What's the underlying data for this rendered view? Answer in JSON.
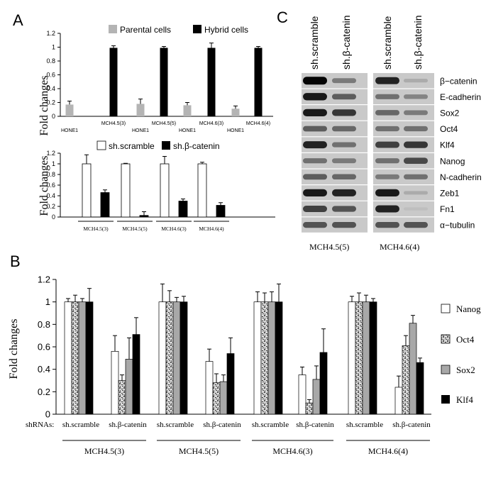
{
  "panels": {
    "A": "A",
    "B": "B",
    "C": "C"
  },
  "chart_data": [
    {
      "id": "A-top",
      "type": "bar",
      "ylabel": "Fold changes",
      "ylim": [
        0,
        1.2
      ],
      "yticks": [
        "0",
        "0.2",
        "0.4",
        "0.6",
        "0.8",
        "1",
        "1.2"
      ],
      "categories": [
        "HONE1",
        "MCH4.5(3)",
        "HONE1",
        "MCH4.5(5)",
        "HONE1",
        "MCH4.6(3)",
        "HONE1",
        "MCH4.6(4)"
      ],
      "series": [
        {
          "name": "Parental cells",
          "color": "#b4b4b4",
          "values": [
            0.17,
            null,
            0.18,
            null,
            0.16,
            null,
            0.11,
            null
          ],
          "errors": [
            0.05,
            null,
            0.07,
            null,
            0.04,
            null,
            0.04,
            null
          ]
        },
        {
          "name": "Hybrid cells",
          "color": "#000000",
          "values": [
            null,
            0.99,
            null,
            0.99,
            null,
            0.99,
            null,
            0.99
          ],
          "errors": [
            null,
            0.03,
            null,
            0.02,
            null,
            0.07,
            null,
            0.02
          ]
        }
      ],
      "legend": "top"
    },
    {
      "id": "A-bottom",
      "type": "bar",
      "ylabel": "Fold changes",
      "ylim": [
        0,
        1.2
      ],
      "yticks": [
        "0",
        "0.2",
        "0.4",
        "0.6",
        "0.8",
        "1",
        "1.2"
      ],
      "categories": [
        "MCH4.5(3)",
        "MCH4.5(5)",
        "MCH4.6(3)",
        "MCH4.6(4)"
      ],
      "series": [
        {
          "name": "sh.scramble",
          "color": "#ffffff",
          "values": [
            1.0,
            1.0,
            1.0,
            1.0
          ],
          "errors": [
            0.17,
            0.01,
            0.14,
            0.03
          ]
        },
        {
          "name": "sh.β-catenin",
          "color": "#000000",
          "values": [
            0.46,
            0.03,
            0.3,
            0.22
          ],
          "errors": [
            0.05,
            0.07,
            0.04,
            0.05
          ]
        }
      ],
      "legend": "top"
    },
    {
      "id": "B",
      "type": "bar",
      "ylabel": "Fold changes",
      "ylim": [
        0,
        1.2
      ],
      "yticks": [
        "0",
        "0.2",
        "0.4",
        "0.6",
        "0.8",
        "1",
        "1.2"
      ],
      "row_label": "shRNAs:",
      "groups": [
        {
          "label": "MCH4.5(3)",
          "categories": [
            "sh.scramble",
            "sh.β-catenin"
          ]
        },
        {
          "label": "MCH4.5(5)",
          "categories": [
            "sh.scramble",
            "sh.β-catenin"
          ]
        },
        {
          "label": "MCH4.6(3)",
          "categories": [
            "sh.scramble",
            "sh.β-catenin"
          ]
        },
        {
          "label": "MCH4.6(4)",
          "categories": [
            "sh.scramble",
            "sh.β-catenin"
          ]
        }
      ],
      "series": [
        {
          "name": "Nanog",
          "fill": "white",
          "values": [
            1.0,
            0.56,
            1.0,
            0.47,
            1.0,
            0.35,
            1.0,
            0.24
          ],
          "errors": [
            0.03,
            0.14,
            0.16,
            0.11,
            0.09,
            0.07,
            0.05,
            0.1
          ]
        },
        {
          "name": "Oct4",
          "fill": "pattern",
          "values": [
            1.0,
            0.3,
            1.0,
            0.28,
            1.0,
            0.1,
            1.0,
            0.61
          ],
          "errors": [
            0.06,
            0.05,
            0.1,
            0.08,
            0.08,
            0.03,
            0.08,
            0.09
          ]
        },
        {
          "name": "Sox2",
          "fill": "gray",
          "values": [
            1.0,
            0.49,
            1.0,
            0.29,
            1.0,
            0.31,
            1.0,
            0.81
          ],
          "errors": [
            0.03,
            0.19,
            0.04,
            0.06,
            0.09,
            0.12,
            0.06,
            0.07
          ]
        },
        {
          "name": "Klf4",
          "fill": "black",
          "values": [
            1.0,
            0.71,
            1.0,
            0.54,
            1.0,
            0.55,
            1.0,
            0.46
          ],
          "errors": [
            0.12,
            0.15,
            0.05,
            0.14,
            0.16,
            0.21,
            0.03,
            0.04
          ]
        }
      ],
      "legend": "right"
    }
  ],
  "western": {
    "columns_left": [
      "sh.scramble",
      "sh.β-catenin"
    ],
    "columns_right": [
      "sh.scramble",
      "sh.β-catenin"
    ],
    "proteins": [
      "β−catenin",
      "E-cadherin",
      "Sox2",
      "Oct4",
      "Klf4",
      "Nanog",
      "N-cadherin",
      "Zeb1",
      "Fn1",
      "α−tubulin"
    ],
    "label_left": "MCH4.5(5)",
    "label_right": "MCH4.6(4)",
    "bands_left": [
      [
        1.0,
        0.4
      ],
      [
        0.9,
        0.55
      ],
      [
        0.9,
        0.75
      ],
      [
        0.55,
        0.5
      ],
      [
        0.85,
        0.45
      ],
      [
        0.45,
        0.4
      ],
      [
        0.55,
        0.5
      ],
      [
        0.9,
        0.85
      ],
      [
        0.7,
        0.6
      ],
      [
        0.6,
        0.6
      ]
    ],
    "bands_right": [
      [
        0.85,
        0.15
      ],
      [
        0.45,
        0.35
      ],
      [
        0.5,
        0.4
      ],
      [
        0.45,
        0.45
      ],
      [
        0.7,
        0.75
      ],
      [
        0.45,
        0.65
      ],
      [
        0.4,
        0.45
      ],
      [
        0.9,
        0.15
      ],
      [
        0.85,
        0.05
      ],
      [
        0.6,
        0.6
      ]
    ]
  }
}
